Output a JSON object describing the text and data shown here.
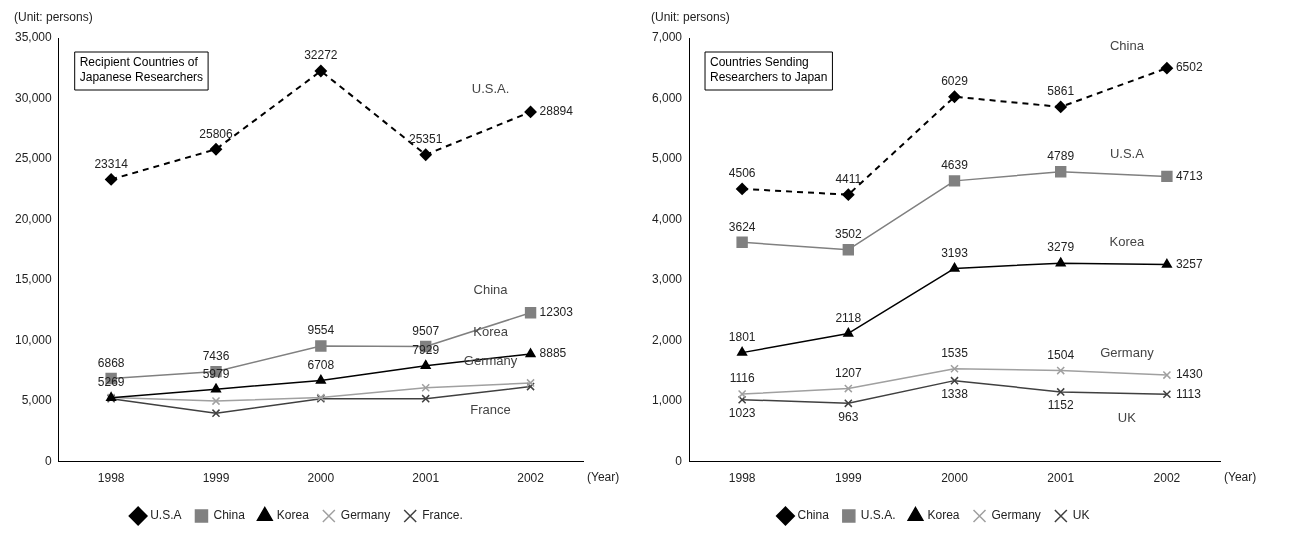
{
  "chart_data": [
    {
      "type": "line",
      "title": "Recipient Countries of Japanese Researchers",
      "ylabel": "(Unit: persons)",
      "xlabel": "(Year)",
      "categories": [
        "1998",
        "1999",
        "2000",
        "2001",
        "2002"
      ],
      "series": [
        {
          "name": "U.S.A",
          "color": "#000000",
          "marker": "diamond",
          "line_style": "dashed",
          "values": [
            23314,
            25806,
            32272,
            25351,
            28894
          ],
          "value_labels": [
            "23314",
            "25806",
            "32272",
            "25351",
            "28894"
          ]
        },
        {
          "name": "China",
          "color": "#808080",
          "marker": "square",
          "line_style": "solid",
          "values": [
            6868,
            7436,
            9554,
            9507,
            12303
          ],
          "value_labels": [
            "6868",
            "7436",
            "9554",
            "9507",
            "12303"
          ]
        },
        {
          "name": "Korea",
          "color": "#000000",
          "marker": "triangle",
          "line_style": "solid",
          "values": [
            5269,
            5979,
            6708,
            7929,
            8885
          ],
          "value_labels": [
            "5269",
            "5979",
            "6708",
            "7929",
            "8885"
          ]
        },
        {
          "name": "Germany",
          "color": "#a0a0a0",
          "marker": "cross",
          "line_style": "solid",
          "values": [
            5300,
            5000,
            5300,
            6100,
            6500
          ]
        },
        {
          "name": "France.",
          "color": "#404040",
          "marker": "cross",
          "line_style": "solid",
          "values": [
            5200,
            4000,
            5200,
            5200,
            6200
          ]
        }
      ],
      "annotations": [
        "U.S.A.",
        "China",
        "Korea",
        "Germany",
        "France"
      ],
      "ylim": [
        0,
        35000
      ],
      "yticks": [
        0,
        {
          "value": 5000,
          "label": "5,000"
        },
        {
          "value": 10000,
          "label": "10,000"
        },
        {
          "value": 15000,
          "label": "15,000"
        },
        {
          "value": 20000,
          "label": "20,000"
        },
        {
          "value": 25000,
          "label": "25,000"
        },
        {
          "value": 30000,
          "label": "30,000"
        },
        {
          "value": 35000,
          "label": "35,000"
        }
      ],
      "grid": false,
      "legend": "bottom"
    },
    {
      "type": "line",
      "title": "Countries Sending Researchers to Japan",
      "ylabel": "(Unit: persons)",
      "xlabel": "(Year)",
      "categories": [
        "1998",
        "1999",
        "2000",
        "2001",
        "2002"
      ],
      "series": [
        {
          "name": "China",
          "color": "#000000",
          "marker": "diamond",
          "line_style": "dashed",
          "values": [
            4506,
            4411,
            6029,
            5861,
            6502
          ],
          "value_labels": [
            "4506",
            "4411",
            "6029",
            "5861",
            "6502"
          ]
        },
        {
          "name": "U.S.A.",
          "color": "#808080",
          "marker": "square",
          "line_style": "solid",
          "values": [
            3624,
            3502,
            4639,
            4789,
            4713
          ],
          "value_labels": [
            "3624",
            "3502",
            "4639",
            "4789",
            "4713"
          ]
        },
        {
          "name": "Korea",
          "color": "#000000",
          "marker": "triangle",
          "line_style": "solid",
          "values": [
            1801,
            2118,
            3193,
            3279,
            3257
          ],
          "value_labels": [
            "1801",
            "2118",
            "3193",
            "3279",
            "3257"
          ]
        },
        {
          "name": "Germany",
          "color": "#a0a0a0",
          "marker": "cross",
          "line_style": "solid",
          "values": [
            1116,
            1207,
            1535,
            1504,
            1430
          ],
          "value_labels": [
            "1116",
            "1207",
            "1535",
            "1504",
            "1430"
          ]
        },
        {
          "name": "UK",
          "color": "#404040",
          "marker": "cross",
          "line_style": "solid",
          "values": [
            1023,
            963,
            1338,
            1152,
            1113
          ],
          "value_labels": [
            "1023",
            "963",
            "1338",
            "1152",
            "1113"
          ]
        }
      ],
      "annotations": [
        "China",
        "U.S.A",
        "Korea",
        "Germany",
        "UK"
      ],
      "ylim": [
        0,
        7000
      ],
      "yticks": [
        0,
        {
          "value": 1000,
          "label": "1,000"
        },
        {
          "value": 2000,
          "label": "2,000"
        },
        {
          "value": 3000,
          "label": "3,000"
        },
        {
          "value": 4000,
          "label": "4,000"
        },
        {
          "value": 5000,
          "label": "5,000"
        },
        {
          "value": 6000,
          "label": "6,000"
        },
        {
          "value": 7000,
          "label": "7,000"
        }
      ],
      "grid": false,
      "legend": "bottom"
    }
  ]
}
